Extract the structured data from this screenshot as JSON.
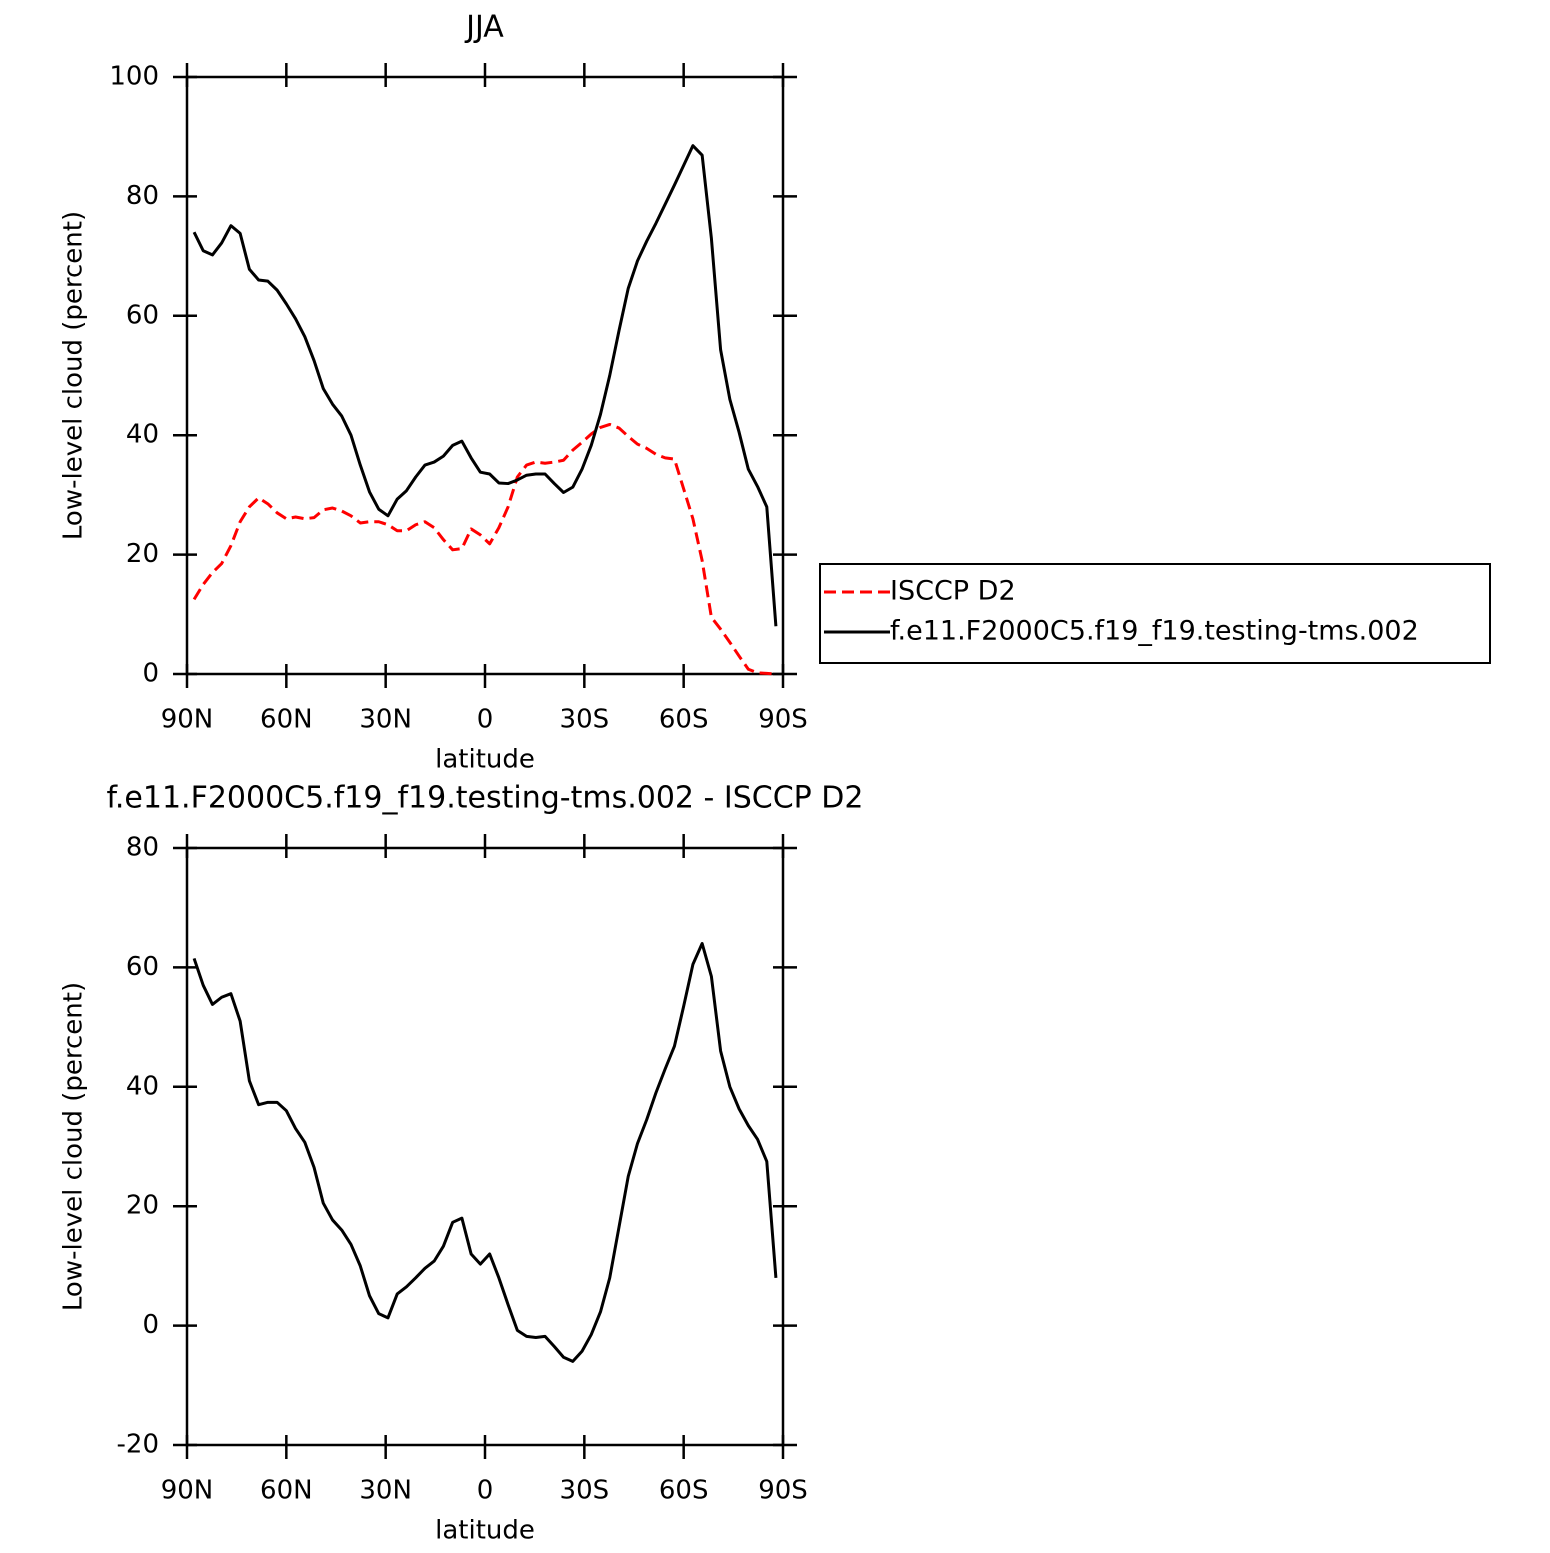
{
  "chart_data": [
    {
      "type": "line",
      "title": "JJA",
      "xlabel": "latitude",
      "ylabel": "Low-level cloud (percent)",
      "x": [
        87.86,
        85.1,
        82.31,
        79.53,
        76.74,
        73.95,
        71.16,
        68.37,
        65.58,
        62.79,
        60.0,
        57.21,
        54.42,
        51.63,
        48.84,
        46.05,
        43.26,
        40.47,
        37.67,
        34.88,
        32.09,
        29.3,
        26.51,
        23.72,
        20.93,
        18.14,
        15.35,
        12.56,
        9.77,
        6.98,
        4.19,
        1.4,
        -1.4,
        -4.19,
        -6.98,
        -9.77,
        -12.56,
        -15.35,
        -18.14,
        -20.93,
        -23.72,
        -26.51,
        -29.3,
        -32.09,
        -34.88,
        -37.67,
        -40.47,
        -43.26,
        -46.05,
        -48.84,
        -51.63,
        -54.42,
        -57.21,
        -60.0,
        -62.79,
        -65.58,
        -68.37,
        -71.16,
        -73.95,
        -76.74,
        -79.53,
        -82.31,
        -85.1,
        -87.86
      ],
      "xlim": [
        90,
        -90
      ],
      "xticks": [
        {
          "value": 90,
          "label": "90N"
        },
        {
          "value": 60,
          "label": "60N"
        },
        {
          "value": 30,
          "label": "30N"
        },
        0,
        {
          "value": -30,
          "label": "30S"
        },
        {
          "value": -60,
          "label": "60S"
        },
        {
          "value": -90,
          "label": "90S"
        }
      ],
      "ylim": [
        0,
        100
      ],
      "yticks": [
        0,
        20,
        40,
        60,
        80,
        100
      ],
      "legend": "right",
      "series": [
        {
          "name": "ISCCP D2",
          "color": "#ff0000",
          "dashed": true,
          "values": [
            12.5,
            15,
            17,
            18.5,
            21.5,
            25.5,
            28,
            29.5,
            28.5,
            27,
            26,
            26.3,
            26,
            26.2,
            27.5,
            27.8,
            27.3,
            26.5,
            25.3,
            25.5,
            25.5,
            25,
            24,
            24,
            25,
            25.5,
            24.5,
            22.5,
            20.8,
            21,
            24.3,
            23.3,
            21.8,
            24.5,
            28,
            33,
            35,
            35.5,
            35.3,
            35.5,
            35.8,
            37.5,
            38.8,
            40.2,
            41.3,
            41.8,
            41.2,
            39.8,
            38.5,
            37.8,
            36.8,
            36.2,
            36,
            31,
            26,
            19,
            9.5,
            7.5,
            5.3,
            3,
            0.8,
            0.2,
            0.1,
            0
          ]
        },
        {
          "name": "f.e11.F2000C5.f19_f19.testing-tms.002",
          "color": "#000000",
          "dashed": false,
          "values": [
            74,
            70.9,
            70.2,
            72.2,
            75.1,
            73.8,
            67.8,
            66,
            65.8,
            64.3,
            62,
            59.5,
            56.5,
            52.5,
            47.8,
            45.2,
            43.2,
            40,
            35,
            30.5,
            27.6,
            26.5,
            29.3,
            30.7,
            33,
            35,
            35.5,
            36.5,
            38.3,
            39,
            36.2,
            33.8,
            33.5,
            32,
            31.9,
            32.5,
            33.3,
            33.5,
            33.5,
            31.9,
            30.4,
            31.3,
            34.3,
            38.3,
            43.5,
            50,
            57.5,
            64.6,
            69.2,
            72.5,
            75.5,
            78.7,
            81.9,
            85.2,
            88.5,
            86.9,
            73,
            54.3,
            46,
            40.5,
            34.3,
            31.4,
            28,
            8
          ]
        }
      ]
    },
    {
      "type": "line",
      "title": "f.e11.F2000C5.f19_f19.testing-tms.002 - ISCCP D2",
      "xlabel": "latitude",
      "ylabel": "Low-level cloud (percent)",
      "x": [
        87.86,
        85.1,
        82.31,
        79.53,
        76.74,
        73.95,
        71.16,
        68.37,
        65.58,
        62.79,
        60.0,
        57.21,
        54.42,
        51.63,
        48.84,
        46.05,
        43.26,
        40.47,
        37.67,
        34.88,
        32.09,
        29.3,
        26.51,
        23.72,
        20.93,
        18.14,
        15.35,
        12.56,
        9.77,
        6.98,
        4.19,
        1.4,
        -1.4,
        -4.19,
        -6.98,
        -9.77,
        -12.56,
        -15.35,
        -18.14,
        -20.93,
        -23.72,
        -26.51,
        -29.3,
        -32.09,
        -34.88,
        -37.67,
        -40.47,
        -43.26,
        -46.05,
        -48.84,
        -51.63,
        -54.42,
        -57.21,
        -60.0,
        -62.79,
        -65.58,
        -68.37,
        -71.16,
        -73.95,
        -76.74,
        -79.53,
        -82.31,
        -85.1,
        -87.86
      ],
      "xlim": [
        90,
        -90
      ],
      "xticks": [
        {
          "value": 90,
          "label": "90N"
        },
        {
          "value": 60,
          "label": "60N"
        },
        {
          "value": 30,
          "label": "30N"
        },
        0,
        {
          "value": -30,
          "label": "30S"
        },
        {
          "value": -60,
          "label": "60S"
        },
        {
          "value": -90,
          "label": "90S"
        }
      ],
      "ylim": [
        -20,
        80
      ],
      "yticks": [
        -20,
        0,
        20,
        40,
        60,
        80
      ],
      "series": [
        {
          "color": "#000000",
          "dashed": false,
          "values": [
            61.5,
            57,
            53.8,
            55,
            55.6,
            51,
            41,
            37,
            37.4,
            37.4,
            36,
            33,
            30.7,
            26.5,
            20.5,
            17.7,
            16,
            13.6,
            10,
            5,
            2,
            1.3,
            5.3,
            6.5,
            8,
            9.6,
            10.8,
            13.3,
            17.3,
            18,
            12,
            10.3,
            12,
            8,
            3.5,
            -0.8,
            -1.8,
            -2,
            -1.8,
            -3.5,
            -5.3,
            -6,
            -4.3,
            -1.5,
            2.3,
            8,
            16.5,
            25,
            30.5,
            34.5,
            39,
            43,
            46.8,
            53.5,
            60.5,
            64,
            58.5,
            46,
            40,
            36.3,
            33.5,
            31.2,
            27.5,
            8
          ]
        }
      ]
    }
  ]
}
